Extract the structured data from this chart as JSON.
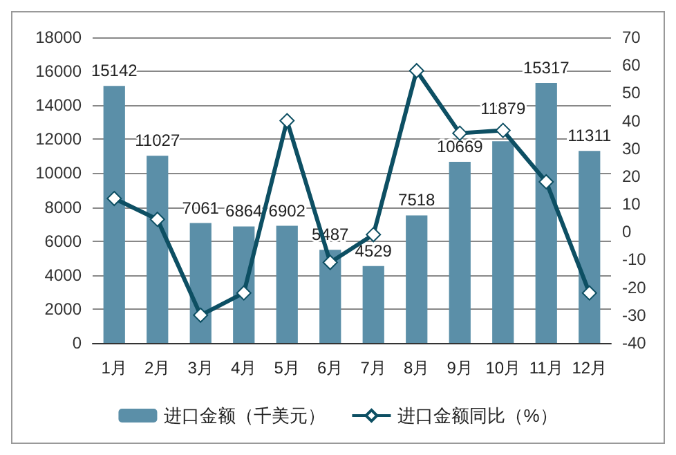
{
  "chart_data": {
    "type": "bar",
    "categories": [
      "1月",
      "2月",
      "3月",
      "4月",
      "5月",
      "6月",
      "7月",
      "8月",
      "9月",
      "10月",
      "11月",
      "12月"
    ],
    "series": [
      {
        "name": "进口金额（千美元）",
        "color": "#5b8fa8",
        "values": [
          15142,
          11027,
          7061,
          6864,
          6902,
          5487,
          4529,
          7518,
          10669,
          11879,
          15317,
          11311
        ],
        "value_labels": [
          "15142",
          "11027",
          "7061",
          "6864",
          "6902",
          "5487",
          "4529",
          "7518",
          "10669",
          "11879",
          "15317",
          "11311"
        ]
      },
      {
        "name": "进口金额同比（%）",
        "type": "line",
        "axis": "y2",
        "color": "#0d4f63",
        "marker": "diamond",
        "values": [
          12,
          4.5,
          -30,
          -22,
          40,
          -11,
          -1,
          58,
          35.5,
          36.5,
          18,
          -22
        ]
      }
    ],
    "ylim": [
      0,
      18000
    ],
    "yticks": [
      0,
      2000,
      4000,
      6000,
      8000,
      10000,
      12000,
      14000,
      16000,
      18000
    ],
    "y2lim": [
      -40,
      70
    ],
    "y2ticks": [
      -40,
      -30,
      -20,
      -10,
      0,
      10,
      20,
      30,
      40,
      50,
      60,
      70
    ],
    "grid": "y",
    "legend": "bottom"
  }
}
